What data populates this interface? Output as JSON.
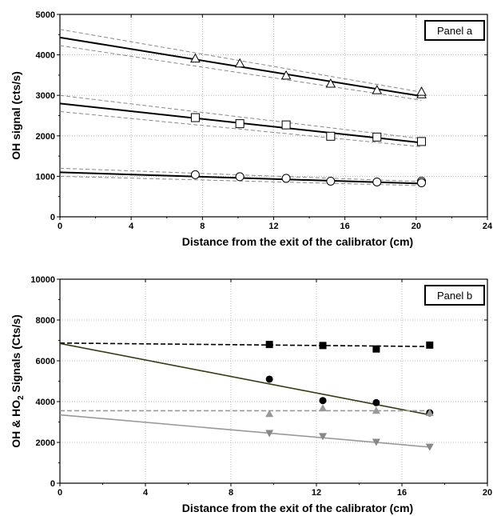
{
  "chart_data": [
    {
      "type": "scatter",
      "panel_label": "Panel a",
      "xlabel": "Distance from the exit of the calibrator (cm)",
      "ylabel": "OH signal (cts/s)",
      "xlim": [
        0,
        24
      ],
      "ylim": [
        0,
        5000
      ],
      "xticks": [
        "0",
        "4",
        "8",
        "12",
        "16",
        "20",
        "24"
      ],
      "yticks": [
        "0",
        "1000",
        "2000",
        "3000",
        "4000",
        "5000"
      ],
      "grid": "dotted",
      "legend": "none",
      "series": [
        {
          "marker": "triangle-open",
          "x": [
            7.6,
            10.1,
            12.7,
            15.2,
            17.8,
            20.3,
            20.3
          ],
          "y": [
            3900,
            3780,
            3480,
            3280,
            3120,
            3020,
            3080
          ],
          "fit": {
            "line": [
              [
                0,
                4430
              ],
              [
                20.3,
                2980
              ]
            ],
            "ci_upper": [
              [
                0,
                4630
              ],
              [
                20.3,
                3080
              ]
            ],
            "ci_lower": [
              [
                0,
                4230
              ],
              [
                20.3,
                2880
              ]
            ]
          }
        },
        {
          "marker": "square-open",
          "x": [
            7.6,
            10.1,
            12.7,
            15.2,
            17.8,
            20.3
          ],
          "y": [
            2450,
            2300,
            2270,
            1990,
            1970,
            1860
          ],
          "fit": {
            "line": [
              [
                0,
                2800
              ],
              [
                20.3,
                1830
              ]
            ],
            "ci_upper": [
              [
                0,
                3000
              ],
              [
                20.3,
                1930
              ]
            ],
            "ci_lower": [
              [
                0,
                2600
              ],
              [
                20.3,
                1730
              ]
            ]
          }
        },
        {
          "marker": "circle-open",
          "x": [
            7.6,
            10.1,
            12.7,
            15.2,
            17.8,
            20.3,
            20.3
          ],
          "y": [
            1040,
            990,
            950,
            880,
            860,
            880,
            840
          ],
          "fit": {
            "line": [
              [
                0,
                1100
              ],
              [
                20.3,
                820
              ]
            ],
            "ci_upper": [
              [
                0,
                1200
              ],
              [
                20.3,
                870
              ]
            ],
            "ci_lower": [
              [
                0,
                1000
              ],
              [
                20.3,
                770
              ]
            ]
          }
        }
      ]
    },
    {
      "type": "scatter",
      "panel_label": "Panel b",
      "xlabel": "Distance from the exit of the calibrator (cm)",
      "ylabel": "OH & HO2 Signals (Cts/s)",
      "ylabel_parts": [
        "OH & HO",
        "2",
        " Signals (Cts/s)"
      ],
      "xlim": [
        0,
        20
      ],
      "ylim": [
        0,
        10000
      ],
      "xticks": [
        "0",
        "4",
        "8",
        "12",
        "16",
        "20"
      ],
      "yticks": [
        "0",
        "2000",
        "4000",
        "6000",
        "8000",
        "10000"
      ],
      "grid": "dotted",
      "legend": "none",
      "series": [
        {
          "marker": "square-filled",
          "color": "#000000",
          "x": [
            9.8,
            12.3,
            14.8,
            17.3
          ],
          "y": [
            6800,
            6750,
            6580,
            6770
          ],
          "fit": {
            "line": [
              [
                0,
                6870
              ],
              [
                17.3,
                6700
              ]
            ],
            "style": "dashed",
            "color": "#000000"
          }
        },
        {
          "marker": "circle-filled",
          "color": "#000000",
          "x": [
            9.8,
            12.3,
            14.8,
            17.3
          ],
          "y": [
            5100,
            4050,
            3950,
            3450
          ],
          "fit": {
            "line": [
              [
                0,
                6850
              ],
              [
                17.3,
                3350
              ]
            ],
            "style": "solid",
            "color": "#3a3a10"
          }
        },
        {
          "marker": "triangle-up-filled",
          "color": "#999999",
          "x": [
            9.8,
            12.3,
            14.8,
            17.3
          ],
          "y": [
            3400,
            3680,
            3560,
            3450
          ],
          "fit": {
            "line": [
              [
                0,
                3550
              ],
              [
                17.3,
                3550
              ]
            ],
            "style": "dashed",
            "color": "#999999"
          }
        },
        {
          "marker": "triangle-down-filled",
          "color": "#888888",
          "x": [
            9.8,
            12.3,
            14.8,
            17.3
          ],
          "y": [
            2450,
            2300,
            2020,
            1780
          ],
          "fit": {
            "line": [
              [
                0,
                3350
              ],
              [
                17.3,
                1770
              ]
            ],
            "style": "solid",
            "color": "#999999"
          }
        }
      ]
    }
  ]
}
